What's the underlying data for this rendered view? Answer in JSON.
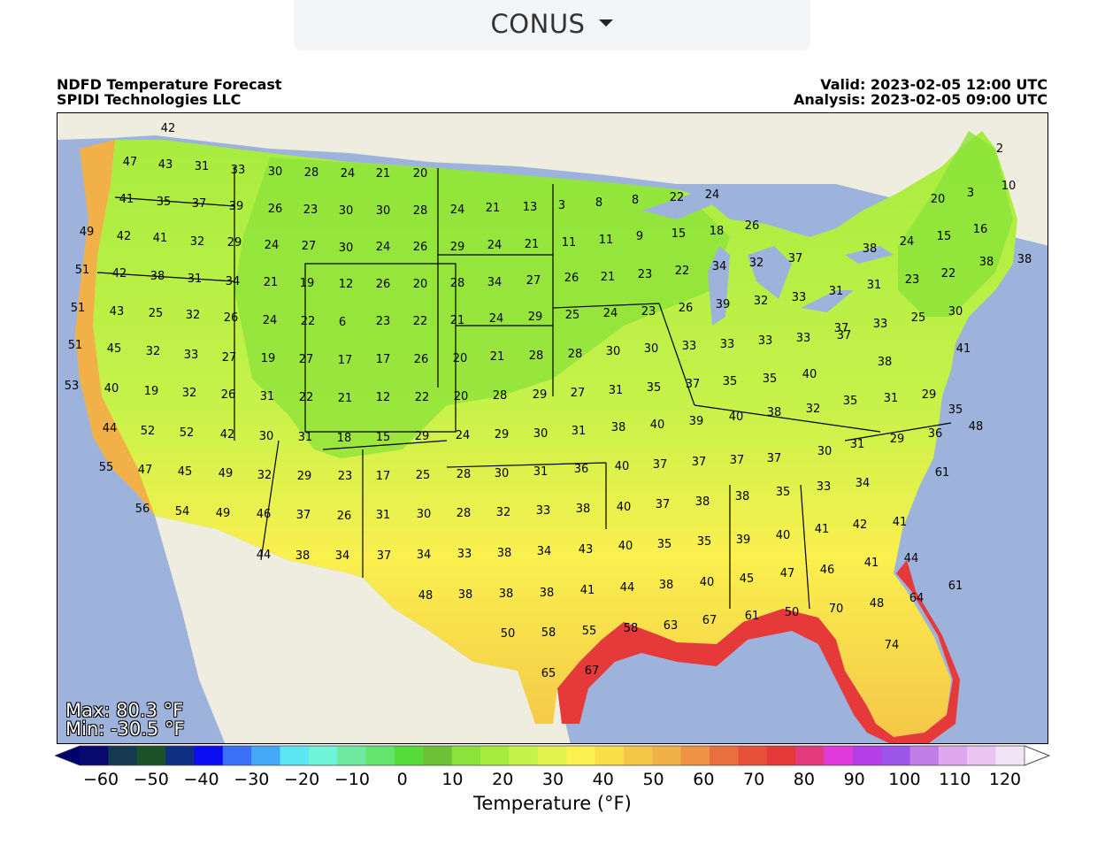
{
  "region_selector": {
    "label": "CONUS"
  },
  "header": {
    "title": "NDFD Temperature Forecast",
    "org": "SPIDI Technologies LLC",
    "valid": "Valid: 2023-02-05 12:00 UTC",
    "analysis": "Analysis: 2023-02-05 09:00 UTC"
  },
  "stats": {
    "max": "Max: 80.3 °F",
    "min": "Min: -30.5 °F"
  },
  "colorbar": {
    "title": "Temperature (°F)",
    "ticks": [
      "−60",
      "−50",
      "−40",
      "−30",
      "−20",
      "−10",
      "0",
      "10",
      "20",
      "30",
      "40",
      "50",
      "60",
      "70",
      "80",
      "90",
      "100",
      "110",
      "120"
    ],
    "colors": [
      "#08086e",
      "#163a50",
      "#1c5128",
      "#112f82",
      "#0c0cf0",
      "#3a6ff7",
      "#45a8f7",
      "#5ce6f2",
      "#6ff4d8",
      "#6ee99f",
      "#64e46c",
      "#55db3c",
      "#6ec238",
      "#8ae23a",
      "#a6ec3e",
      "#c6f24a",
      "#e4f24e",
      "#faf04e",
      "#f9de48",
      "#f5c748",
      "#f2b049",
      "#ee9245",
      "#e96f3f",
      "#e7513a",
      "#e6393a",
      "#e33a7c",
      "#e03adb",
      "#b53fe6",
      "#9b55e8",
      "#c07ee8",
      "#dea7ee",
      "#ebc5f1",
      "#f3e3f6"
    ],
    "under_color": "#00006e",
    "over_color": "#ffffff"
  },
  "stations": [
    {
      "v": "42"
    },
    {
      "v": "47"
    },
    {
      "v": "43"
    },
    {
      "v": "31"
    },
    {
      "v": "33"
    },
    {
      "v": "30"
    },
    {
      "v": "28"
    },
    {
      "v": "24"
    },
    {
      "v": "21"
    },
    {
      "v": "20"
    },
    {
      "v": "41"
    },
    {
      "v": "35"
    },
    {
      "v": "37"
    },
    {
      "v": "39"
    },
    {
      "v": "26"
    },
    {
      "v": "23"
    },
    {
      "v": "30"
    },
    {
      "v": "30"
    },
    {
      "v": "28"
    },
    {
      "v": "24"
    },
    {
      "v": "21"
    },
    {
      "v": "13"
    },
    {
      "v": "3"
    },
    {
      "v": "8"
    },
    {
      "v": "8"
    },
    {
      "v": "22"
    },
    {
      "v": "24"
    },
    {
      "v": "2"
    },
    {
      "v": "3"
    },
    {
      "v": "10"
    },
    {
      "v": "20"
    },
    {
      "v": "49"
    },
    {
      "v": "42"
    },
    {
      "v": "41"
    },
    {
      "v": "32"
    },
    {
      "v": "29"
    },
    {
      "v": "24"
    },
    {
      "v": "27"
    },
    {
      "v": "30"
    },
    {
      "v": "24"
    },
    {
      "v": "26"
    },
    {
      "v": "29"
    },
    {
      "v": "24"
    },
    {
      "v": "21"
    },
    {
      "v": "11"
    },
    {
      "v": "11"
    },
    {
      "v": "9"
    },
    {
      "v": "15"
    },
    {
      "v": "18"
    },
    {
      "v": "26"
    },
    {
      "v": "24"
    },
    {
      "v": "15"
    },
    {
      "v": "16"
    },
    {
      "v": "38"
    },
    {
      "v": "51"
    },
    {
      "v": "42"
    },
    {
      "v": "38"
    },
    {
      "v": "31"
    },
    {
      "v": "34"
    },
    {
      "v": "21"
    },
    {
      "v": "19"
    },
    {
      "v": "12"
    },
    {
      "v": "26"
    },
    {
      "v": "20"
    },
    {
      "v": "28"
    },
    {
      "v": "34"
    },
    {
      "v": "27"
    },
    {
      "v": "26"
    },
    {
      "v": "21"
    },
    {
      "v": "23"
    },
    {
      "v": "22"
    },
    {
      "v": "34"
    },
    {
      "v": "32"
    },
    {
      "v": "37"
    },
    {
      "v": "38"
    },
    {
      "v": "31"
    },
    {
      "v": "23"
    },
    {
      "v": "22"
    },
    {
      "v": "38"
    },
    {
      "v": "51"
    },
    {
      "v": "43"
    },
    {
      "v": "25"
    },
    {
      "v": "32"
    },
    {
      "v": "26"
    },
    {
      "v": "24"
    },
    {
      "v": "22"
    },
    {
      "v": "6"
    },
    {
      "v": "23"
    },
    {
      "v": "22"
    },
    {
      "v": "21"
    },
    {
      "v": "24"
    },
    {
      "v": "29"
    },
    {
      "v": "25"
    },
    {
      "v": "24"
    },
    {
      "v": "23"
    },
    {
      "v": "26"
    },
    {
      "v": "39"
    },
    {
      "v": "32"
    },
    {
      "v": "33"
    },
    {
      "v": "31"
    },
    {
      "v": "37"
    },
    {
      "v": "33"
    },
    {
      "v": "25"
    },
    {
      "v": "30"
    },
    {
      "v": "51"
    },
    {
      "v": "45"
    },
    {
      "v": "32"
    },
    {
      "v": "33"
    },
    {
      "v": "27"
    },
    {
      "v": "19"
    },
    {
      "v": "27"
    },
    {
      "v": "17"
    },
    {
      "v": "17"
    },
    {
      "v": "26"
    },
    {
      "v": "20"
    },
    {
      "v": "21"
    },
    {
      "v": "28"
    },
    {
      "v": "28"
    },
    {
      "v": "30"
    },
    {
      "v": "30"
    },
    {
      "v": "33"
    },
    {
      "v": "33"
    },
    {
      "v": "33"
    },
    {
      "v": "33"
    },
    {
      "v": "37"
    },
    {
      "v": "38"
    },
    {
      "v": "41"
    },
    {
      "v": "53"
    },
    {
      "v": "40"
    },
    {
      "v": "19"
    },
    {
      "v": "32"
    },
    {
      "v": "26"
    },
    {
      "v": "31"
    },
    {
      "v": "22"
    },
    {
      "v": "21"
    },
    {
      "v": "12"
    },
    {
      "v": "22"
    },
    {
      "v": "20"
    },
    {
      "v": "28"
    },
    {
      "v": "29"
    },
    {
      "v": "27"
    },
    {
      "v": "31"
    },
    {
      "v": "35"
    },
    {
      "v": "37"
    },
    {
      "v": "35"
    },
    {
      "v": "35"
    },
    {
      "v": "40"
    },
    {
      "v": "35"
    },
    {
      "v": "31"
    },
    {
      "v": "29"
    },
    {
      "v": "44"
    },
    {
      "v": "52"
    },
    {
      "v": "52"
    },
    {
      "v": "42"
    },
    {
      "v": "30"
    },
    {
      "v": "31"
    },
    {
      "v": "18"
    },
    {
      "v": "15"
    },
    {
      "v": "29"
    },
    {
      "v": "24"
    },
    {
      "v": "29"
    },
    {
      "v": "30"
    },
    {
      "v": "31"
    },
    {
      "v": "38"
    },
    {
      "v": "40"
    },
    {
      "v": "39"
    },
    {
      "v": "40"
    },
    {
      "v": "38"
    },
    {
      "v": "32"
    },
    {
      "v": "35"
    },
    {
      "v": "48"
    },
    {
      "v": "55"
    },
    {
      "v": "47"
    },
    {
      "v": "45"
    },
    {
      "v": "49"
    },
    {
      "v": "32"
    },
    {
      "v": "29"
    },
    {
      "v": "23"
    },
    {
      "v": "17"
    },
    {
      "v": "25"
    },
    {
      "v": "28"
    },
    {
      "v": "30"
    },
    {
      "v": "31"
    },
    {
      "v": "36"
    },
    {
      "v": "40"
    },
    {
      "v": "37"
    },
    {
      "v": "37"
    },
    {
      "v": "37"
    },
    {
      "v": "37"
    },
    {
      "v": "30"
    },
    {
      "v": "31"
    },
    {
      "v": "29"
    },
    {
      "v": "36"
    },
    {
      "v": "61"
    },
    {
      "v": "56"
    },
    {
      "v": "54"
    },
    {
      "v": "49"
    },
    {
      "v": "46"
    },
    {
      "v": "37"
    },
    {
      "v": "26"
    },
    {
      "v": "31"
    },
    {
      "v": "30"
    },
    {
      "v": "28"
    },
    {
      "v": "32"
    },
    {
      "v": "33"
    },
    {
      "v": "38"
    },
    {
      "v": "40"
    },
    {
      "v": "37"
    },
    {
      "v": "38"
    },
    {
      "v": "38"
    },
    {
      "v": "35"
    },
    {
      "v": "33"
    },
    {
      "v": "34"
    },
    {
      "v": "44"
    },
    {
      "v": "38"
    },
    {
      "v": "34"
    },
    {
      "v": "37"
    },
    {
      "v": "34"
    },
    {
      "v": "33"
    },
    {
      "v": "38"
    },
    {
      "v": "34"
    },
    {
      "v": "43"
    },
    {
      "v": "40"
    },
    {
      "v": "35"
    },
    {
      "v": "35"
    },
    {
      "v": "39"
    },
    {
      "v": "40"
    },
    {
      "v": "41"
    },
    {
      "v": "42"
    },
    {
      "v": "41"
    },
    {
      "v": "48"
    },
    {
      "v": "38"
    },
    {
      "v": "38"
    },
    {
      "v": "38"
    },
    {
      "v": "41"
    },
    {
      "v": "44"
    },
    {
      "v": "38"
    },
    {
      "v": "40"
    },
    {
      "v": "45"
    },
    {
      "v": "47"
    },
    {
      "v": "46"
    },
    {
      "v": "41"
    },
    {
      "v": "44"
    },
    {
      "v": "50"
    },
    {
      "v": "58"
    },
    {
      "v": "55"
    },
    {
      "v": "58"
    },
    {
      "v": "63"
    },
    {
      "v": "67"
    },
    {
      "v": "61"
    },
    {
      "v": "50"
    },
    {
      "v": "70"
    },
    {
      "v": "48"
    },
    {
      "v": "64"
    },
    {
      "v": "61"
    },
    {
      "v": "65"
    },
    {
      "v": "67"
    },
    {
      "v": "74"
    }
  ]
}
